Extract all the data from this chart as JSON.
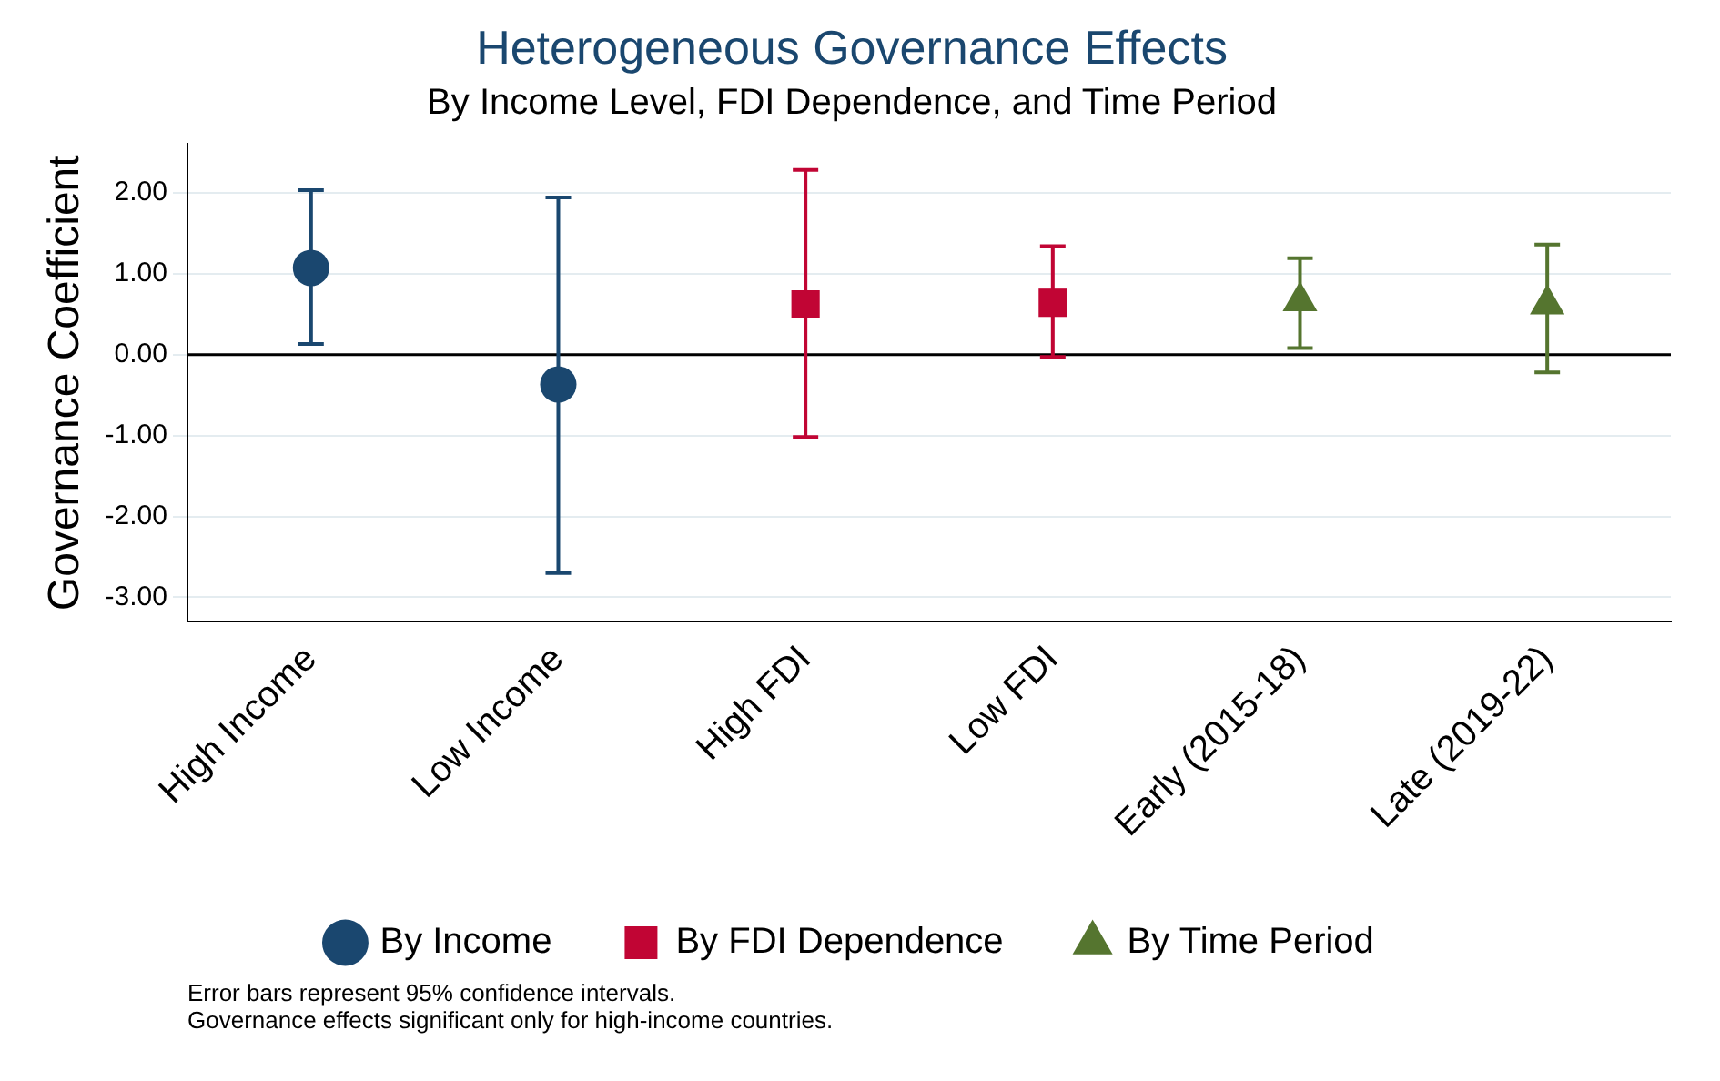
{
  "chart_data": {
    "type": "scatter",
    "title": "Heterogeneous Governance Effects",
    "subtitle": "By Income Level, FDI Dependence, and Time Period",
    "ylabel": "Governance Coefficient",
    "categories": [
      "High Income",
      "Low Income",
      "High FDI",
      "Low FDI",
      "Early (2015-18)",
      "Late (2019-22)"
    ],
    "series": [
      {
        "name": "By Income",
        "color": "#1a476f",
        "marker": "circle",
        "values": [
          1.07,
          -0.37,
          null,
          null,
          null,
          null
        ],
        "errors": [
          [
            0.13,
            2.03
          ],
          [
            -2.7,
            1.94
          ],
          null,
          null,
          null,
          null
        ]
      },
      {
        "name": "By FDI Dependence",
        "color": "#c10534",
        "marker": "square",
        "values": [
          null,
          null,
          0.62,
          0.64,
          null,
          null
        ],
        "errors": [
          null,
          null,
          [
            -1.02,
            2.28
          ],
          [
            -0.03,
            1.34
          ],
          null,
          null
        ]
      },
      {
        "name": "By Time Period",
        "color": "#55752f",
        "marker": "triangle",
        "values": [
          null,
          null,
          null,
          null,
          0.66,
          0.62
        ],
        "errors": [
          null,
          null,
          null,
          null,
          [
            0.08,
            1.19
          ],
          [
            -0.22,
            1.36
          ]
        ]
      }
    ],
    "ylim": [
      -3.3,
      2.6
    ],
    "yticks": [
      {
        "value": -3,
        "label": "-3.00"
      },
      {
        "value": -2,
        "label": "-2.00"
      },
      {
        "value": -1,
        "label": "-1.00"
      },
      {
        "value": 0,
        "label": "0.00"
      },
      {
        "value": 1,
        "label": "1.00"
      },
      {
        "value": 2,
        "label": "2.00"
      }
    ],
    "grid": "y",
    "legend": "bottom",
    "ref_lines": [
      {
        "axis": "y",
        "value": 0,
        "color": "#000000"
      }
    ],
    "annotations": [
      "Error bars represent 95% confidence intervals.",
      "Governance effects significant only for high-income countries."
    ]
  }
}
